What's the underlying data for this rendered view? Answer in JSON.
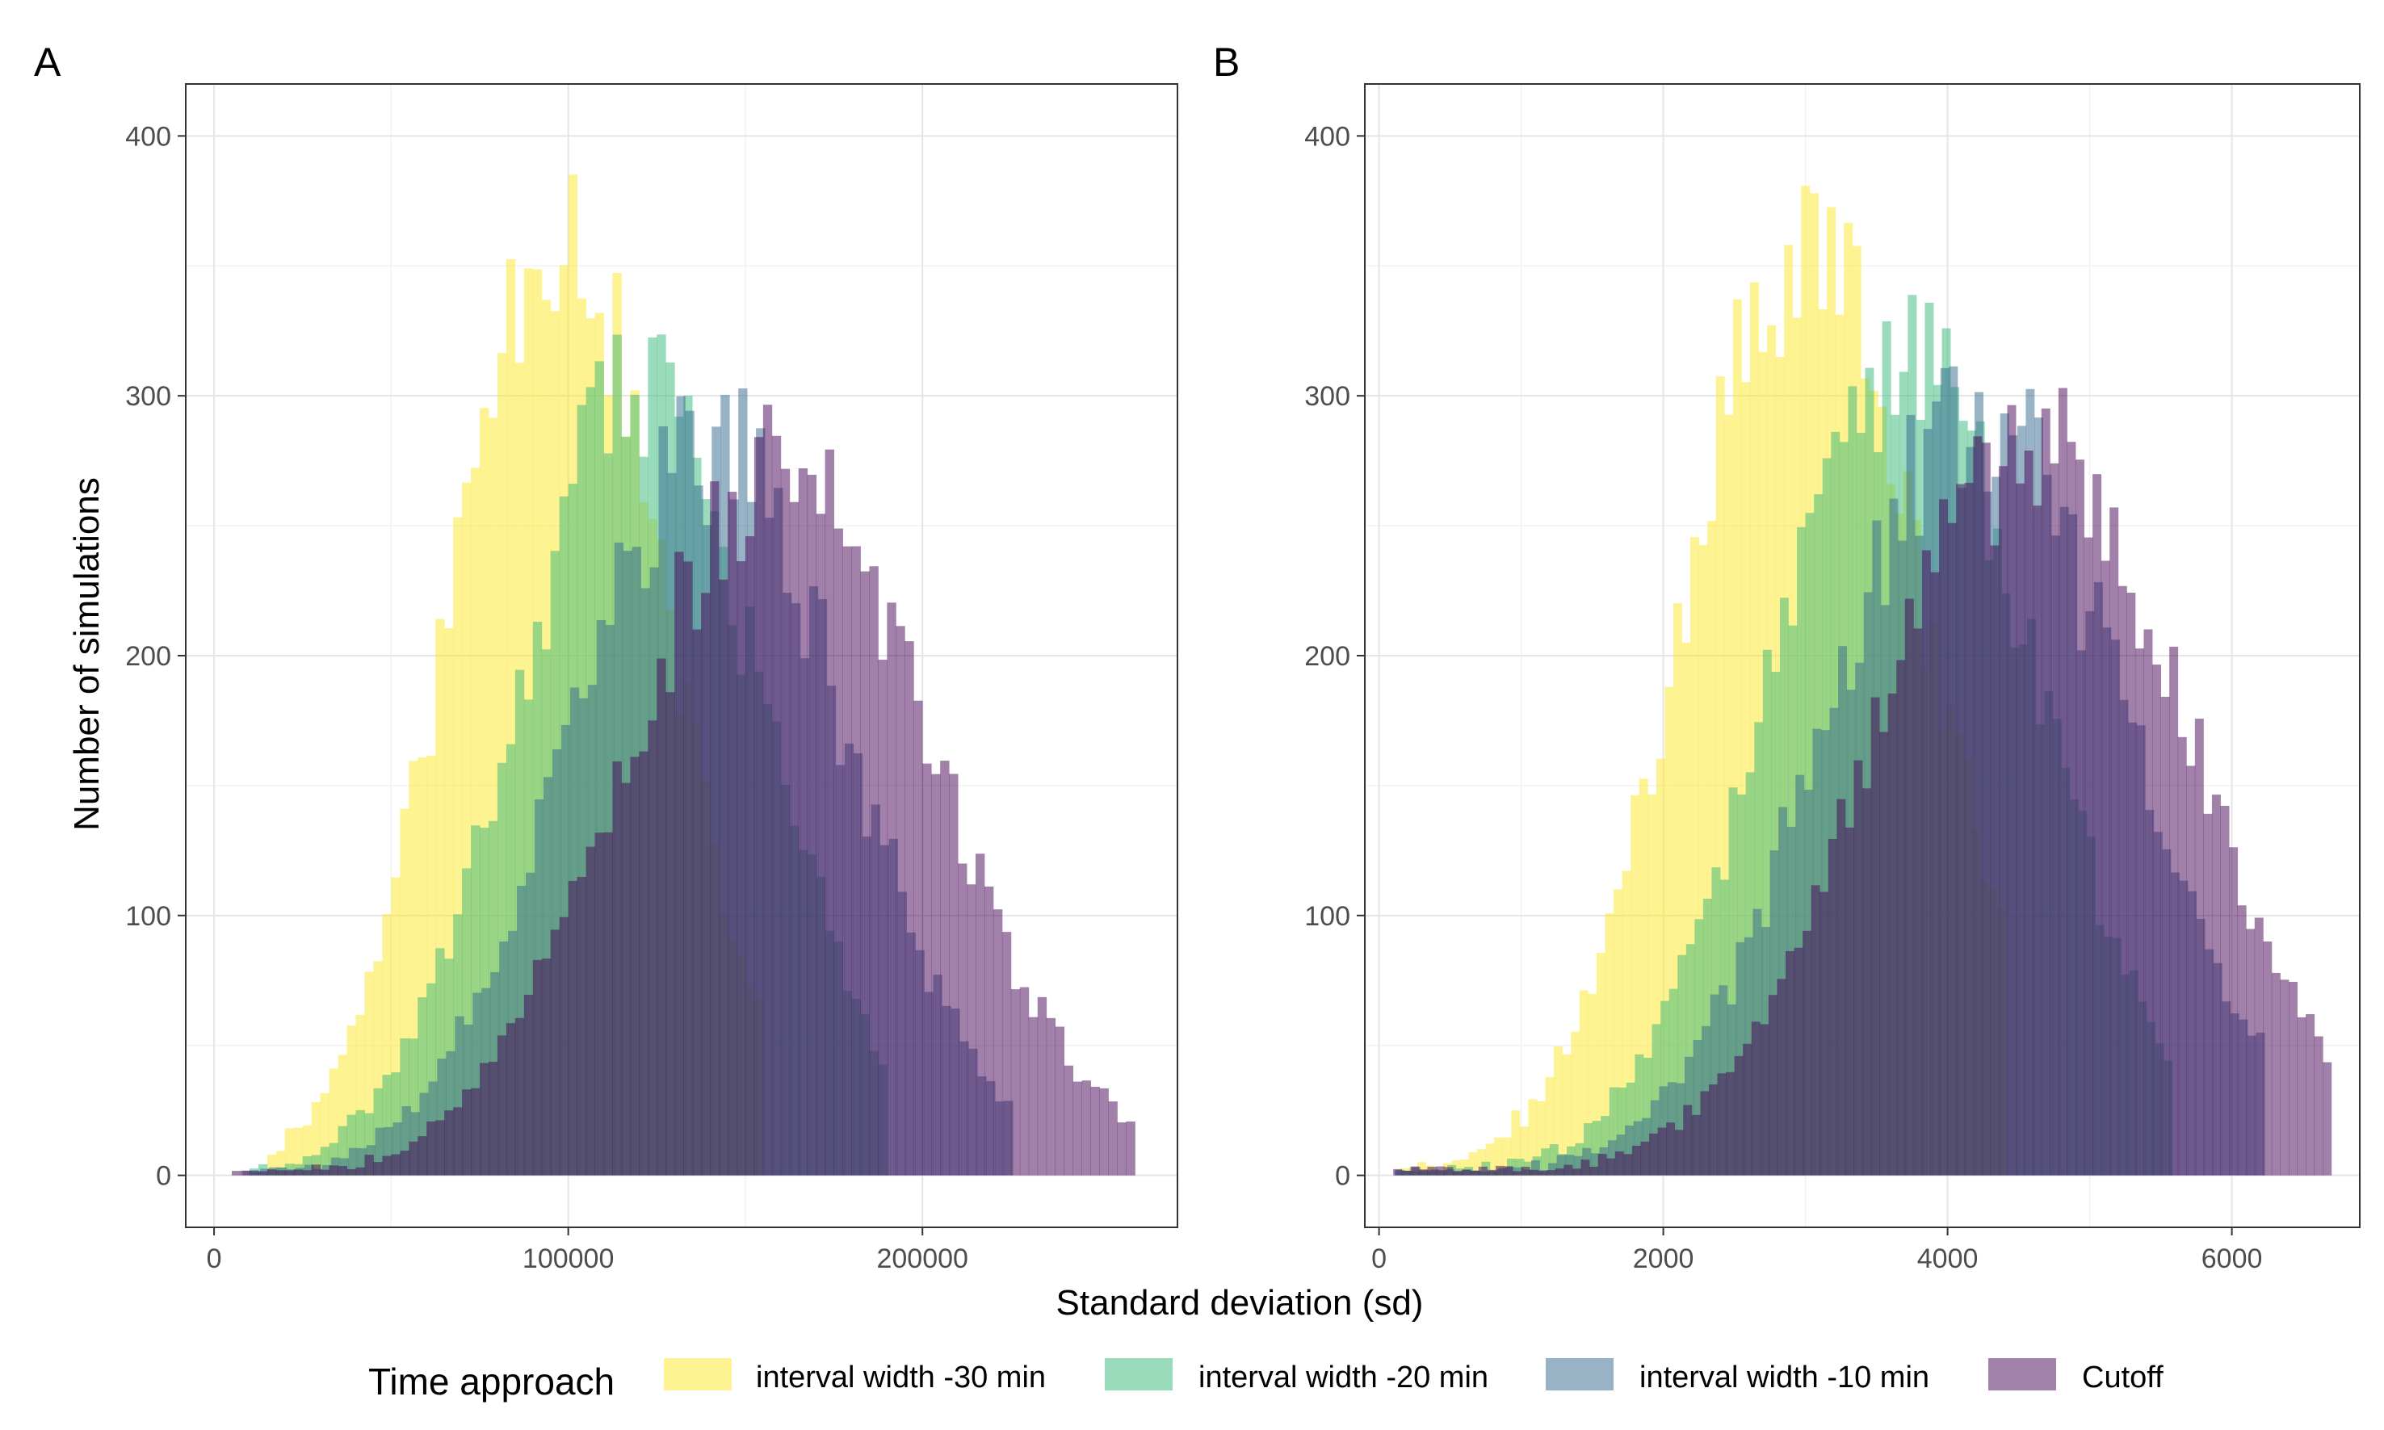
{
  "colors": {
    "background": "#ffffff",
    "panel_border": "#333333",
    "grid_major": "#e5e5e5",
    "grid_minor": "#f2f2f2",
    "tick": "#333333",
    "interval width -30 min": "#fde725",
    "interval width -20 min": "#35b779",
    "interval width -10 min": "#31688e",
    "Cutoff": "#440154"
  },
  "fill_alpha": 0.5,
  "xlabel": "Standard deviation (sd)",
  "ylabel": "Number of simulations",
  "legend": {
    "title": "Time approach",
    "placement": "bottom",
    "entries": [
      "interval width -30 min",
      "interval width -20 min",
      "interval width -10 min",
      "Cutoff"
    ]
  },
  "chart_data": [
    {
      "panel": "A",
      "type": "bar",
      "subtype": "overlaid histogram",
      "xlim": [
        -8000,
        272000
      ],
      "ylim": [
        -20,
        420
      ],
      "xticks": [
        0,
        100000,
        200000
      ],
      "xtick_labels": [
        "0",
        "100000",
        "200000"
      ],
      "yticks": [
        0,
        100,
        200,
        300,
        400
      ],
      "ytick_labels": [
        "0",
        "100",
        "200",
        "300",
        "400"
      ],
      "grid": true,
      "bin_width": 2500,
      "series": [
        {
          "name": "interval width -30 min",
          "mean": 97000,
          "sd": 30000,
          "peak": 370,
          "min": 15000,
          "max": 155000,
          "seed": 11
        },
        {
          "name": "interval width -20 min",
          "mean": 120000,
          "sd": 35000,
          "peak": 300,
          "min": 10000,
          "max": 190000,
          "seed": 23
        },
        {
          "name": "interval width -10 min",
          "mean": 140000,
          "sd": 39000,
          "peak": 280,
          "min": 8000,
          "max": 225000,
          "seed": 37
        },
        {
          "name": "Cutoff",
          "mean": 160000,
          "sd": 43000,
          "peak": 270,
          "min": 5000,
          "max": 258000,
          "seed": 53
        }
      ]
    },
    {
      "panel": "B",
      "type": "bar",
      "subtype": "overlaid histogram",
      "xlim": [
        -100,
        6900
      ],
      "ylim": [
        -20,
        420
      ],
      "xticks": [
        0,
        2000,
        4000,
        6000
      ],
      "xtick_labels": [
        "0",
        "2000",
        "4000",
        "6000"
      ],
      "yticks": [
        0,
        100,
        200,
        300,
        400
      ],
      "ytick_labels": [
        "0",
        "100",
        "200",
        "300",
        "400"
      ],
      "grid": true,
      "bin_width": 60,
      "series": [
        {
          "name": "interval width -30 min",
          "mean": 3000,
          "sd": 850,
          "peak": 360,
          "min": 150,
          "max": 4400,
          "seed": 71
        },
        {
          "name": "interval width -20 min",
          "mean": 3700,
          "sd": 950,
          "peak": 310,
          "min": 120,
          "max": 5550,
          "seed": 83
        },
        {
          "name": "interval width -10 min",
          "mean": 4200,
          "sd": 1050,
          "peak": 290,
          "min": 110,
          "max": 6200,
          "seed": 97
        },
        {
          "name": "Cutoff",
          "mean": 4600,
          "sd": 1100,
          "peak": 280,
          "min": 100,
          "max": 6700,
          "seed": 109
        }
      ]
    }
  ]
}
